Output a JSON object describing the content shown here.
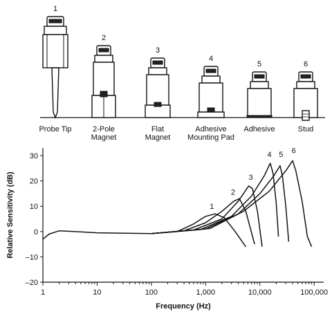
{
  "mounts": [
    {
      "number": "1",
      "label": [
        "Probe Tip"
      ]
    },
    {
      "number": "2",
      "label": [
        "2-Pole",
        "Magnet"
      ]
    },
    {
      "number": "3",
      "label": [
        "Flat",
        "Magnet"
      ]
    },
    {
      "number": "4",
      "label": [
        "Adhesive",
        "Mounting Pad"
      ]
    },
    {
      "number": "5",
      "label": [
        "Adhesive"
      ]
    },
    {
      "number": "6",
      "label": [
        "Stud"
      ]
    }
  ],
  "chart_data": {
    "type": "line",
    "xlabel": "Frequency (Hz)",
    "ylabel": "Relative Sensitivity (dB)",
    "xscale": "log",
    "xlim": [
      1,
      150000
    ],
    "ylim": [
      -20,
      33
    ],
    "xticks": [
      {
        "value": 1,
        "label": "1"
      },
      {
        "value": 10,
        "label": "10"
      },
      {
        "value": 100,
        "label": "100"
      },
      {
        "value": 1000,
        "label": "1,000"
      },
      {
        "value": 10000,
        "label": "10,000"
      },
      {
        "value": 100000,
        "label": "100,000"
      }
    ],
    "yticks": [
      {
        "value": 30,
        "label": "30"
      },
      {
        "value": 20,
        "label": "20"
      },
      {
        "value": 10,
        "label": "10"
      },
      {
        "value": 0,
        "label": "0"
      },
      {
        "value": -10,
        "label": "–10"
      },
      {
        "value": -20,
        "label": "–20"
      }
    ],
    "base_curve": [
      [
        1,
        -3
      ],
      [
        1.3,
        -1
      ],
      [
        2,
        0.3
      ],
      [
        3,
        0.1
      ],
      [
        10,
        -0.5
      ],
      [
        100,
        -0.8
      ]
    ],
    "series": [
      {
        "label": "1",
        "points": [
          [
            100,
            -0.8
          ],
          [
            300,
            0
          ],
          [
            600,
            3
          ],
          [
            1000,
            6
          ],
          [
            1500,
            7
          ],
          [
            2200,
            5.5
          ],
          [
            3500,
            0
          ],
          [
            5500,
            -6
          ]
        ],
        "label_at": [
          1300,
          9
        ]
      },
      {
        "label": "2",
        "points": [
          [
            100,
            -0.8
          ],
          [
            400,
            0.3
          ],
          [
            1000,
            3.5
          ],
          [
            2000,
            8
          ],
          [
            3300,
            12
          ],
          [
            4200,
            13
          ],
          [
            5500,
            8
          ],
          [
            8000,
            -5
          ]
        ],
        "label_at": [
          3200,
          14.5
        ]
      },
      {
        "label": "3",
        "points": [
          [
            100,
            -0.8
          ],
          [
            600,
            0.6
          ],
          [
            2000,
            5
          ],
          [
            4000,
            12
          ],
          [
            6200,
            18
          ],
          [
            7300,
            17
          ],
          [
            9000,
            8
          ],
          [
            11000,
            -6
          ]
        ],
        "label_at": [
          6800,
          20.5
        ]
      },
      {
        "label": "4",
        "points": [
          [
            100,
            -0.8
          ],
          [
            800,
            0.8
          ],
          [
            3000,
            6
          ],
          [
            7000,
            14
          ],
          [
            12000,
            22
          ],
          [
            15500,
            27
          ],
          [
            17500,
            23
          ],
          [
            20000,
            11
          ],
          [
            22000,
            -2
          ]
        ],
        "label_at": [
          15000,
          29.5
        ]
      },
      {
        "label": "5",
        "points": [
          [
            100,
            -0.8
          ],
          [
            1000,
            1
          ],
          [
            4000,
            7
          ],
          [
            10000,
            15
          ],
          [
            18000,
            22
          ],
          [
            23500,
            26
          ],
          [
            26000,
            22
          ],
          [
            30000,
            10
          ],
          [
            34000,
            -4
          ]
        ],
        "label_at": [
          24500,
          29.5
        ]
      },
      {
        "label": "6",
        "points": [
          [
            100,
            -0.8
          ],
          [
            1200,
            1.2
          ],
          [
            5000,
            8
          ],
          [
            15000,
            16
          ],
          [
            30000,
            24
          ],
          [
            40000,
            28
          ],
          [
            46000,
            24
          ],
          [
            60000,
            12
          ],
          [
            75000,
            -2
          ],
          [
            90000,
            -6
          ]
        ],
        "label_at": [
          42000,
          31
        ]
      }
    ]
  }
}
